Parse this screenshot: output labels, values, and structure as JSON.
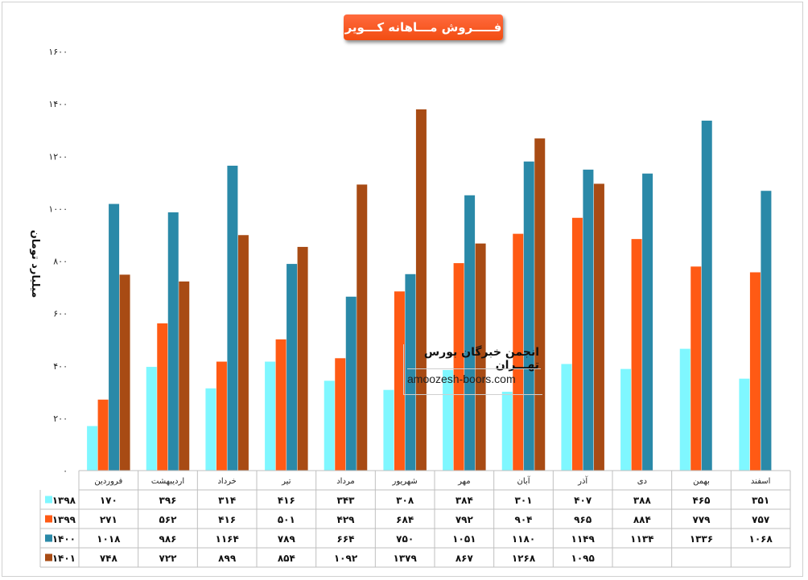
{
  "chart_data": {
    "type": "bar",
    "title": "فـــــروش مـــاهانه کـــویر",
    "ylabel": "میلیارد تومان",
    "ylim": [
      0,
      1600
    ],
    "yticks": [
      "۰",
      "۲۰۰",
      "۴۰۰",
      "۶۰۰",
      "۸۰۰",
      "۱۰۰۰",
      "۱۲۰۰",
      "۱۴۰۰",
      "۱۶۰۰"
    ],
    "grid": false,
    "legend": "table-left",
    "categories": [
      "فروردین",
      "اردیبهشت",
      "خرداد",
      "تیر",
      "مرداد",
      "شهریور",
      "مهر",
      "آبان",
      "آذر",
      "دی",
      "بهمن",
      "اسفند"
    ],
    "series": [
      {
        "name": "۱۳۹۸",
        "color": "#7ff7ff",
        "values": [
          170,
          396,
          314,
          416,
          343,
          308,
          384,
          301,
          407,
          388,
          465,
          351
        ],
        "labels": [
          "۱۷۰",
          "۳۹۶",
          "۳۱۴",
          "۴۱۶",
          "۳۴۳",
          "۳۰۸",
          "۳۸۴",
          "۳۰۱",
          "۴۰۷",
          "۳۸۸",
          "۴۶۵",
          "۳۵۱"
        ]
      },
      {
        "name": "۱۳۹۹",
        "color": "#ff5a14",
        "values": [
          271,
          562,
          416,
          501,
          429,
          684,
          792,
          904,
          965,
          884,
          779,
          757
        ],
        "labels": [
          "۲۷۱",
          "۵۶۲",
          "۴۱۶",
          "۵۰۱",
          "۴۲۹",
          "۶۸۴",
          "۷۹۲",
          "۹۰۴",
          "۹۶۵",
          "۸۸۴",
          "۷۷۹",
          "۷۵۷"
        ]
      },
      {
        "name": "۱۴۰۰",
        "color": "#2a89a8",
        "values": [
          1018,
          986,
          1164,
          789,
          664,
          750,
          1051,
          1180,
          1149,
          1134,
          1336,
          1068
        ],
        "labels": [
          "۱۰۱۸",
          "۹۸۶",
          "۱۱۶۴",
          "۷۸۹",
          "۶۶۴",
          "۷۵۰",
          "۱۰۵۱",
          "۱۱۸۰",
          "۱۱۴۹",
          "۱۱۳۴",
          "۱۳۳۶",
          "۱۰۶۸"
        ]
      },
      {
        "name": "۱۴۰۱",
        "color": "#a84b14",
        "values": [
          748,
          722,
          899,
          854,
          1092,
          1379,
          867,
          1268,
          1095,
          null,
          null,
          null
        ],
        "labels": [
          "۷۴۸",
          "۷۲۲",
          "۸۹۹",
          "۸۵۴",
          "۱۰۹۲",
          "۱۳۷۹",
          "۸۶۷",
          "۱۲۶۸",
          "۱۰۹۵",
          "",
          "",
          ""
        ]
      }
    ]
  },
  "watermark": {
    "title": "انجمن خبرگان بورس تهـــران",
    "url": "amoozesh-boors.com"
  }
}
